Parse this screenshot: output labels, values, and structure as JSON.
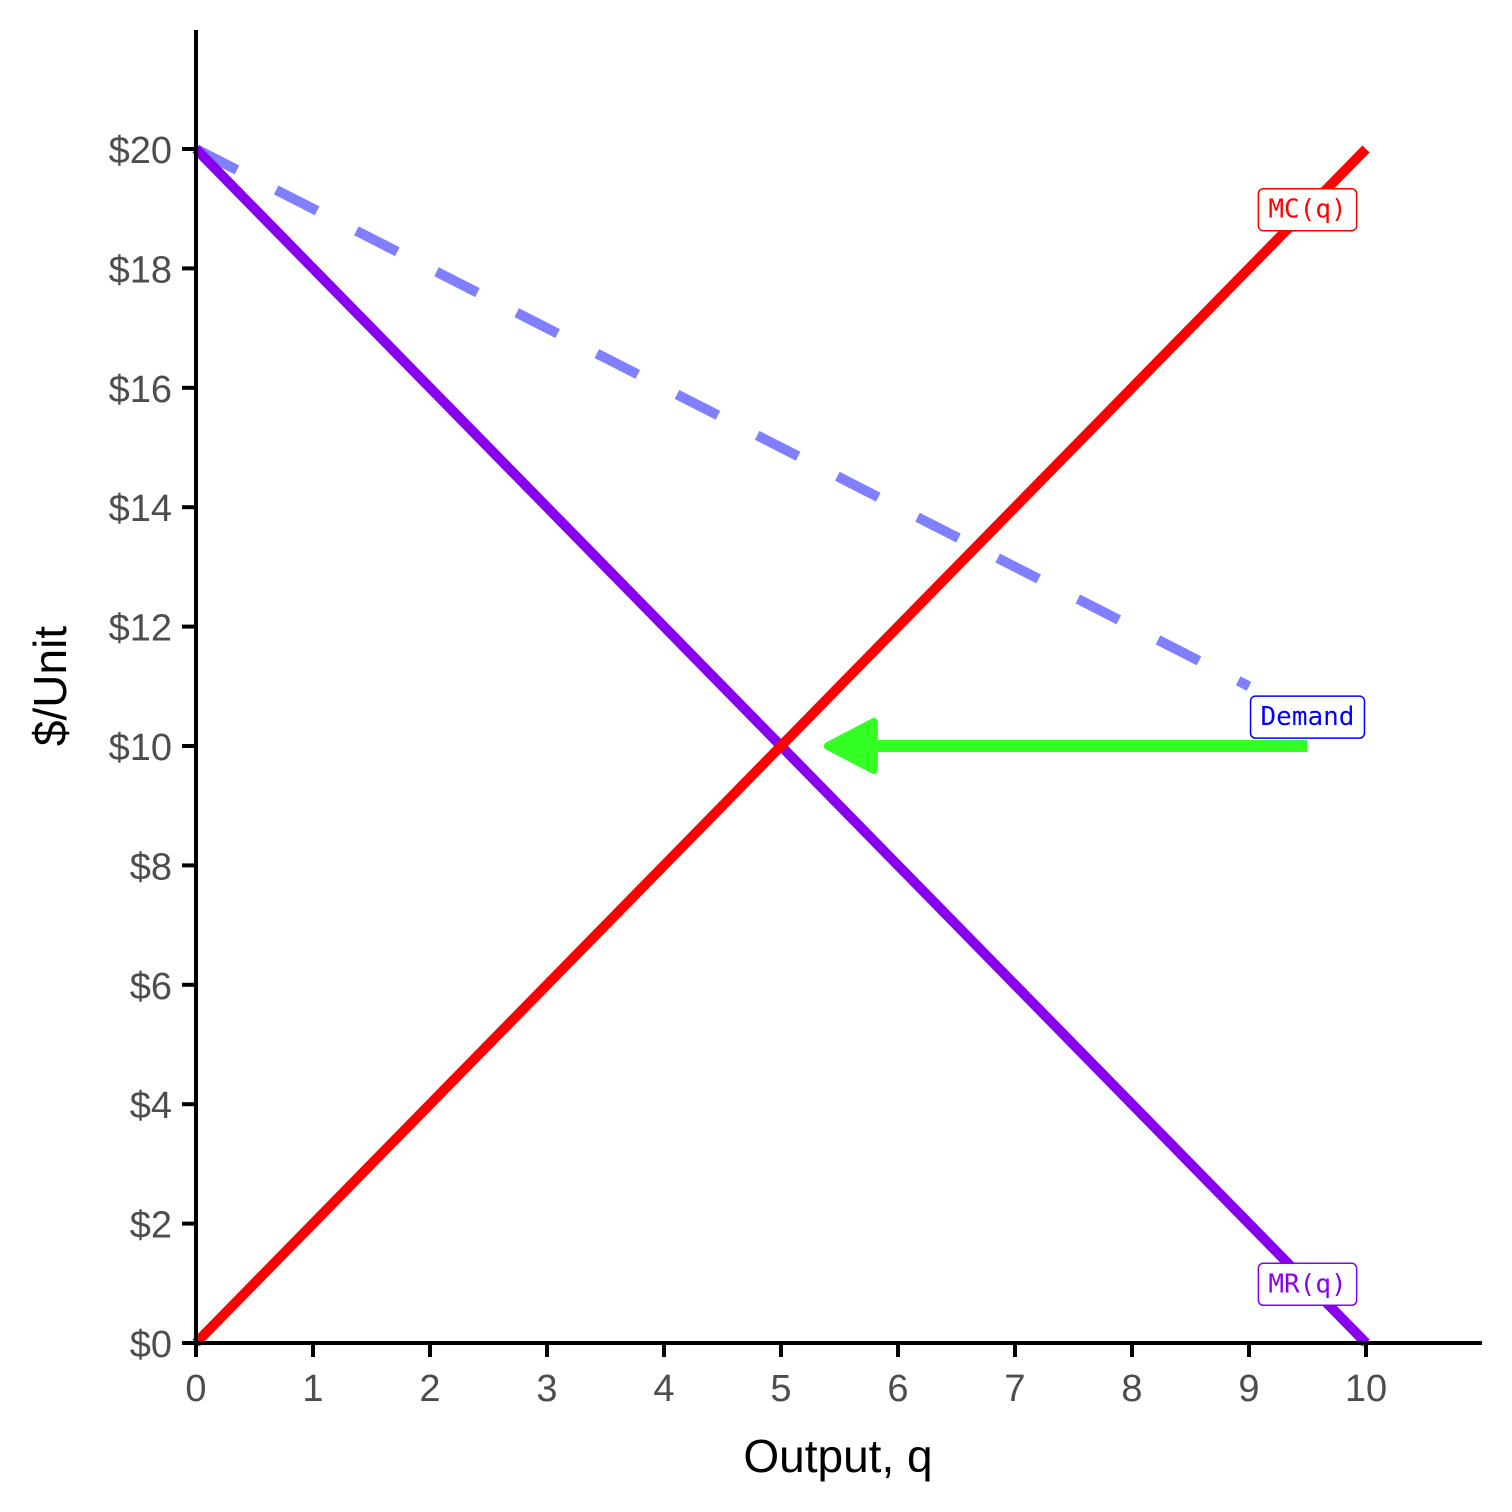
{
  "chart_data": {
    "type": "line",
    "title": "",
    "xlabel": "Output, q",
    "ylabel": "$/Unit",
    "xlim": [
      0,
      11
    ],
    "ylim": [
      0,
      22
    ],
    "x_ticks": [
      0,
      1,
      2,
      3,
      4,
      5,
      6,
      7,
      8,
      9,
      10
    ],
    "x_tick_labels": [
      "0",
      "1",
      "2",
      "3",
      "4",
      "5",
      "6",
      "7",
      "8",
      "9",
      "10"
    ],
    "y_ticks": [
      0,
      2,
      4,
      6,
      8,
      10,
      12,
      14,
      16,
      18,
      20
    ],
    "y_tick_labels": [
      "$0",
      "$2",
      "$4",
      "$6",
      "$8",
      "$10",
      "$12",
      "$14",
      "$16",
      "$18",
      "$20"
    ],
    "grid": false,
    "series": [
      {
        "name": "Demand",
        "color": "#7f7fff",
        "dashed": true,
        "points": [
          [
            0,
            20
          ],
          [
            9,
            11
          ]
        ],
        "label": {
          "text": "Demand",
          "at": [
            9.5,
            10.5
          ],
          "color": "#0000ff"
        }
      },
      {
        "name": "MR(q)",
        "color": "#8800ee",
        "dashed": false,
        "points": [
          [
            0,
            20
          ],
          [
            10,
            0
          ]
        ],
        "label": {
          "text": "MR(q)",
          "at": [
            9.5,
            1
          ],
          "color": "#8800ee"
        }
      },
      {
        "name": "MC(q)",
        "color": "#ff0000",
        "dashed": false,
        "points": [
          [
            0,
            0
          ],
          [
            10,
            20
          ]
        ],
        "label": {
          "text": "MC(q)",
          "at": [
            9.5,
            19
          ],
          "color": "#ff0000"
        }
      }
    ],
    "annotations": [
      {
        "type": "arrow",
        "from": [
          9.5,
          10
        ],
        "to": [
          5.4,
          10
        ],
        "color": "#33ff22"
      }
    ]
  }
}
